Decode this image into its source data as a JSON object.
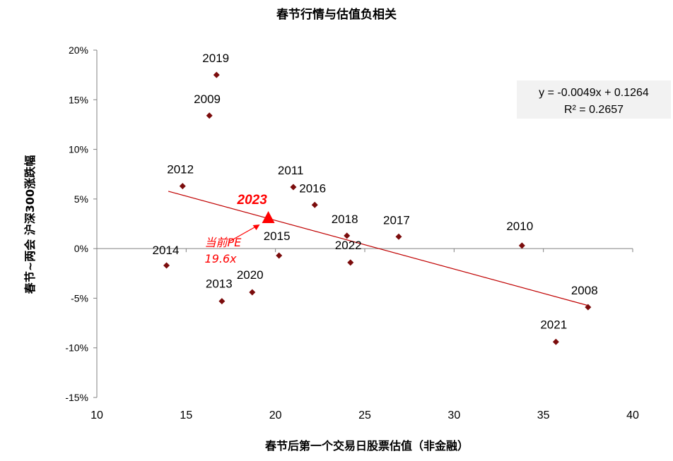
{
  "chart_data": {
    "type": "scatter",
    "title": "春节行情与估值负相关",
    "xlabel": "春节后第一个交易日股票估值（非金融）",
    "ylabel": "春节~两会 沪深300涨跌幅",
    "xlim": [
      10,
      40
    ],
    "ylim": [
      -15,
      20
    ],
    "x_ticks": [
      "10",
      "15",
      "20",
      "25",
      "30",
      "35",
      "40"
    ],
    "y_ticks": [
      "-15%",
      "-10%",
      "-5%",
      "0%",
      "5%",
      "10%",
      "15%",
      "20%"
    ],
    "grid": false,
    "marker_color": "#7B0C0C",
    "points": [
      {
        "label": "2019",
        "x": 16.7,
        "y": 17.5
      },
      {
        "label": "2009",
        "x": 16.3,
        "y": 13.4
      },
      {
        "label": "2012",
        "x": 14.8,
        "y": 6.3
      },
      {
        "label": "2011",
        "x": 21.0,
        "y": 6.2
      },
      {
        "label": "2016",
        "x": 22.2,
        "y": 4.4
      },
      {
        "label": "2018",
        "x": 24.0,
        "y": 1.3
      },
      {
        "label": "2017",
        "x": 26.9,
        "y": 1.2
      },
      {
        "label": "2010",
        "x": 33.8,
        "y": 0.3
      },
      {
        "label": "2014",
        "x": 13.9,
        "y": -1.7
      },
      {
        "label": "2015",
        "x": 20.2,
        "y": -0.7
      },
      {
        "label": "2022",
        "x": 24.2,
        "y": -1.4
      },
      {
        "label": "2020",
        "x": 18.7,
        "y": -4.4
      },
      {
        "label": "2013",
        "x": 17.0,
        "y": -5.3
      },
      {
        "label": "2008",
        "x": 37.5,
        "y": -5.9
      },
      {
        "label": "2021",
        "x": 35.7,
        "y": -9.4
      }
    ],
    "trendline": {
      "color": "#C00000",
      "slope": -0.0049,
      "intercept": 0.1264,
      "x_range": [
        14,
        37.5
      ],
      "equation": "y = -0.0049x + 0.1264",
      "r_squared": "R² = 0.2657"
    },
    "highlight": {
      "label": "2023",
      "x": 19.6,
      "y": 3.0,
      "color": "#ff0000",
      "note_line1": "当前PE",
      "note_line2": "19.6x"
    }
  }
}
